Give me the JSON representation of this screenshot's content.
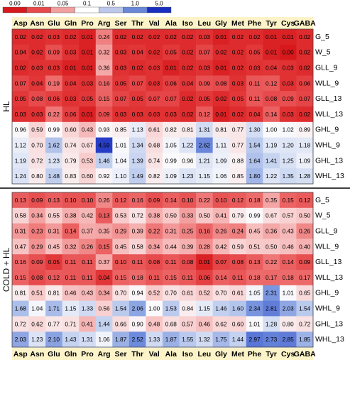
{
  "chart_data": {
    "type": "heatmap",
    "color_scale": {
      "ticks": [
        "0.00",
        "0.01",
        "0.05",
        "0.1",
        "0.5",
        "1.0",
        "5.0"
      ],
      "colors": [
        "#d7191c",
        "#e8494b",
        "#f0a0a0",
        "#ffffff",
        "#bcc8ea",
        "#6a86d8",
        "#1a2fc0"
      ],
      "midpoint": 1.0
    },
    "columns": [
      "Asp",
      "Asn",
      "Glu",
      "Gln",
      "Pro",
      "Arg",
      "Ser",
      "Thr",
      "Val",
      "Ala",
      "Iso",
      "Leu",
      "Gly",
      "Met",
      "Phe",
      "Tyr",
      "Cys",
      "GABA"
    ],
    "groups": [
      {
        "label": "HL",
        "rows": [
          {
            "label": "G_5",
            "values": [
              0.02,
              0.02,
              0.03,
              0.02,
              0.01,
              0.24,
              0.02,
              0.02,
              0.02,
              0.02,
              0.02,
              0.03,
              0.01,
              0.02,
              0.02,
              0.01,
              0.01,
              0.02
            ]
          },
          {
            "label": "W_5",
            "values": [
              0.04,
              0.02,
              0.09,
              0.03,
              0.01,
              0.32,
              0.03,
              0.04,
              0.02,
              0.05,
              0.02,
              0.07,
              0.02,
              0.02,
              0.05,
              0.01,
              0.0,
              0.02
            ]
          },
          {
            "label": "GLL_9",
            "values": [
              0.02,
              0.03,
              0.03,
              0.01,
              0.01,
              0.36,
              0.03,
              0.02,
              0.03,
              0.01,
              0.02,
              0.03,
              0.01,
              0.02,
              0.03,
              0.04,
              0.03,
              0.02
            ]
          },
          {
            "label": "WLL_9",
            "values": [
              0.07,
              0.04,
              0.19,
              0.04,
              0.03,
              0.16,
              0.05,
              0.07,
              0.03,
              0.06,
              0.04,
              0.09,
              0.08,
              0.03,
              0.11,
              0.12,
              0.03,
              0.06
            ]
          },
          {
            "label": "GLL_13",
            "values": [
              0.05,
              0.08,
              0.06,
              0.03,
              0.05,
              0.15,
              0.07,
              0.05,
              0.07,
              0.07,
              0.02,
              0.05,
              0.02,
              0.05,
              0.11,
              0.08,
              0.09,
              0.07
            ]
          },
          {
            "label": "WLL_13",
            "values": [
              0.03,
              0.03,
              0.22,
              0.06,
              0.01,
              0.09,
              0.03,
              0.03,
              0.03,
              0.03,
              0.02,
              0.12,
              0.01,
              0.02,
              0.04,
              0.14,
              0.03,
              0.02
            ]
          },
          {
            "label": "GHL_9",
            "values": [
              0.96,
              0.59,
              0.99,
              0.6,
              0.43,
              0.93,
              0.85,
              1.13,
              0.61,
              0.82,
              0.81,
              1.31,
              0.81,
              0.77,
              1.3,
              1.0,
              1.02,
              0.89
            ]
          },
          {
            "label": "WHL_9",
            "values": [
              1.12,
              0.7,
              1.62,
              0.74,
              0.67,
              4.59,
              1.01,
              1.34,
              0.68,
              1.05,
              1.22,
              2.62,
              1.11,
              0.77,
              1.54,
              1.19,
              1.2,
              1.18
            ]
          },
          {
            "label": "GHL_13",
            "values": [
              1.19,
              0.72,
              1.23,
              0.79,
              0.53,
              1.46,
              1.04,
              1.39,
              0.74,
              0.99,
              0.96,
              1.21,
              1.09,
              0.88,
              1.64,
              1.41,
              1.25,
              1.09
            ]
          },
          {
            "label": "WHL_13",
            "values": [
              1.24,
              0.8,
              1.48,
              0.83,
              0.6,
              0.92,
              1.1,
              1.49,
              0.82,
              1.09,
              1.23,
              1.15,
              1.06,
              0.85,
              1.8,
              1.22,
              1.35,
              1.28
            ]
          }
        ]
      },
      {
        "label": "COLD + HL",
        "rows": [
          {
            "label": "G_5",
            "values": [
              0.13,
              0.09,
              0.13,
              0.1,
              0.1,
              0.26,
              0.12,
              0.16,
              0.09,
              0.14,
              0.1,
              0.22,
              0.1,
              0.12,
              0.18,
              0.35,
              0.15,
              0.12
            ]
          },
          {
            "label": "W_5",
            "values": [
              0.58,
              0.34,
              0.55,
              0.38,
              0.42,
              0.13,
              0.53,
              0.72,
              0.38,
              0.5,
              0.33,
              0.5,
              0.41,
              0.79,
              0.99,
              0.67,
              0.57,
              0.5
            ]
          },
          {
            "label": "GLL_9",
            "values": [
              0.31,
              0.23,
              0.31,
              0.14,
              0.37,
              0.35,
              0.29,
              0.39,
              0.22,
              0.31,
              0.25,
              0.16,
              0.26,
              0.24,
              0.45,
              0.36,
              0.43,
              0.26
            ]
          },
          {
            "label": "WLL_9",
            "values": [
              0.47,
              0.29,
              0.45,
              0.32,
              0.26,
              0.15,
              0.45,
              0.58,
              0.34,
              0.44,
              0.39,
              0.28,
              0.42,
              0.59,
              0.51,
              0.5,
              0.46,
              0.4
            ]
          },
          {
            "label": "GLL_13",
            "values": [
              0.16,
              0.09,
              0.05,
              0.11,
              0.11,
              0.37,
              0.1,
              0.11,
              0.08,
              0.11,
              0.08,
              0.01,
              0.07,
              0.08,
              0.13,
              0.22,
              0.14,
              0.09
            ]
          },
          {
            "label": "WLL_13",
            "values": [
              0.15,
              0.08,
              0.12,
              0.11,
              0.11,
              0.04,
              0.15,
              0.18,
              0.11,
              0.15,
              0.11,
              0.06,
              0.14,
              0.11,
              0.18,
              0.17,
              0.18,
              0.17
            ]
          },
          {
            "label": "GHL_9",
            "values": [
              0.81,
              0.51,
              0.81,
              0.46,
              0.43,
              0.34,
              0.7,
              0.94,
              0.52,
              0.7,
              0.61,
              0.52,
              0.7,
              0.61,
              1.05,
              2.31,
              1.01,
              0.65
            ]
          },
          {
            "label": "WHL_9",
            "values": [
              1.68,
              1.04,
              1.71,
              1.15,
              1.33,
              0.56,
              1.54,
              2.06,
              1.0,
              1.53,
              0.84,
              1.15,
              1.46,
              1.6,
              2.34,
              2.81,
              2.03,
              1.54
            ]
          },
          {
            "label": "GHL_13",
            "values": [
              0.72,
              0.62,
              0.77,
              0.71,
              0.41,
              1.44,
              0.66,
              0.9,
              0.48,
              0.68,
              0.57,
              0.46,
              0.62,
              0.6,
              1.01,
              1.28,
              0.8,
              0.72
            ]
          },
          {
            "label": "WHL_13",
            "values": [
              2.03,
              1.23,
              2.1,
              1.43,
              1.31,
              1.06,
              1.87,
              2.52,
              1.33,
              1.87,
              1.55,
              1.32,
              1.75,
              1.44,
              2.97,
              2.73,
              2.85,
              1.85
            ]
          }
        ]
      }
    ]
  }
}
